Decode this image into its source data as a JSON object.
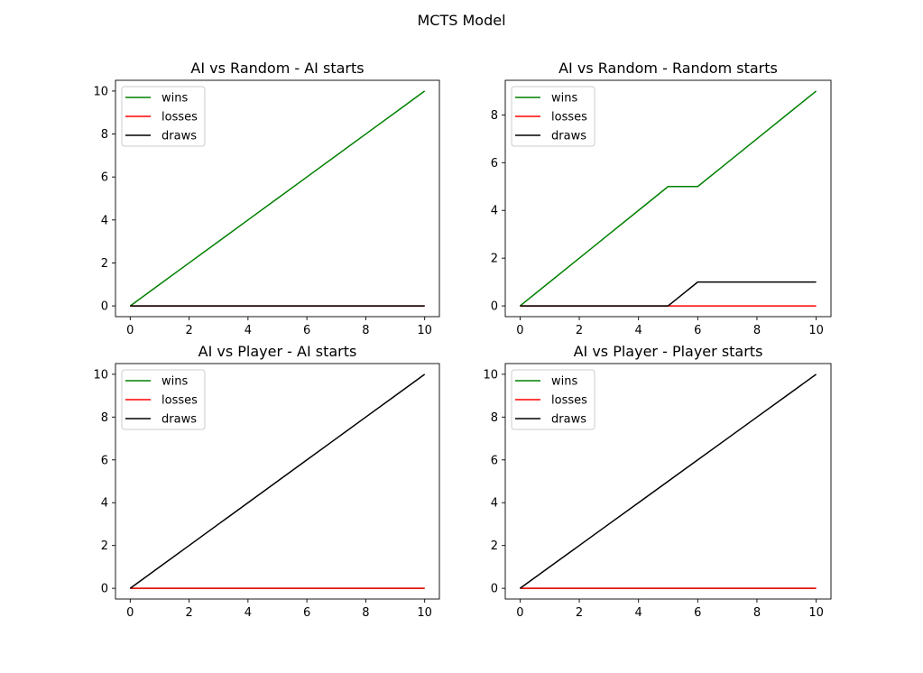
{
  "figure": {
    "suptitle": "MCTS Model"
  },
  "chart_data": [
    {
      "type": "line",
      "title": "AI vs Random - AI starts",
      "xlabel": "",
      "ylabel": "",
      "xlim": [
        -0.5,
        10.5
      ],
      "ylim": [
        -0.5,
        10.5
      ],
      "xticks": [
        0,
        2,
        4,
        6,
        8,
        10
      ],
      "yticks": [
        0,
        2,
        4,
        6,
        8,
        10
      ],
      "grid": false,
      "legend_position": "upper-left",
      "x": [
        0,
        1,
        2,
        3,
        4,
        5,
        6,
        7,
        8,
        9,
        10
      ],
      "series": [
        {
          "name": "wins",
          "color": "#008000",
          "values": [
            0,
            1,
            2,
            3,
            4,
            5,
            6,
            7,
            8,
            9,
            10
          ]
        },
        {
          "name": "losses",
          "color": "#ff0000",
          "values": [
            0,
            0,
            0,
            0,
            0,
            0,
            0,
            0,
            0,
            0,
            0
          ]
        },
        {
          "name": "draws",
          "color": "#000000",
          "values": [
            0,
            0,
            0,
            0,
            0,
            0,
            0,
            0,
            0,
            0,
            0
          ]
        }
      ]
    },
    {
      "type": "line",
      "title": "AI vs Random - Random starts",
      "xlabel": "",
      "ylabel": "",
      "xlim": [
        -0.5,
        10.5
      ],
      "ylim": [
        -0.45,
        9.45
      ],
      "xticks": [
        0,
        2,
        4,
        6,
        8,
        10
      ],
      "yticks": [
        0,
        2,
        4,
        6,
        8
      ],
      "grid": false,
      "legend_position": "upper-left",
      "x": [
        0,
        1,
        2,
        3,
        4,
        5,
        6,
        7,
        8,
        9,
        10
      ],
      "series": [
        {
          "name": "wins",
          "color": "#008000",
          "values": [
            0,
            1,
            2,
            3,
            4,
            5,
            5,
            6,
            7,
            8,
            9
          ]
        },
        {
          "name": "losses",
          "color": "#ff0000",
          "values": [
            0,
            0,
            0,
            0,
            0,
            0,
            0,
            0,
            0,
            0,
            0
          ]
        },
        {
          "name": "draws",
          "color": "#000000",
          "values": [
            0,
            0,
            0,
            0,
            0,
            0,
            1,
            1,
            1,
            1,
            1
          ]
        }
      ]
    },
    {
      "type": "line",
      "title": "AI vs Player - AI starts",
      "xlabel": "",
      "ylabel": "",
      "xlim": [
        -0.5,
        10.5
      ],
      "ylim": [
        -0.5,
        10.5
      ],
      "xticks": [
        0,
        2,
        4,
        6,
        8,
        10
      ],
      "yticks": [
        0,
        2,
        4,
        6,
        8,
        10
      ],
      "grid": false,
      "legend_position": "upper-left",
      "x": [
        0,
        1,
        2,
        3,
        4,
        5,
        6,
        7,
        8,
        9,
        10
      ],
      "series": [
        {
          "name": "wins",
          "color": "#008000",
          "values": [
            0,
            0,
            0,
            0,
            0,
            0,
            0,
            0,
            0,
            0,
            0
          ]
        },
        {
          "name": "losses",
          "color": "#ff0000",
          "values": [
            0,
            0,
            0,
            0,
            0,
            0,
            0,
            0,
            0,
            0,
            0
          ]
        },
        {
          "name": "draws",
          "color": "#000000",
          "values": [
            0,
            1,
            2,
            3,
            4,
            5,
            6,
            7,
            8,
            9,
            10
          ]
        }
      ]
    },
    {
      "type": "line",
      "title": "AI vs Player - Player starts",
      "xlabel": "",
      "ylabel": "",
      "xlim": [
        -0.5,
        10.5
      ],
      "ylim": [
        -0.5,
        10.5
      ],
      "xticks": [
        0,
        2,
        4,
        6,
        8,
        10
      ],
      "yticks": [
        0,
        2,
        4,
        6,
        8,
        10
      ],
      "grid": false,
      "legend_position": "upper-left",
      "x": [
        0,
        1,
        2,
        3,
        4,
        5,
        6,
        7,
        8,
        9,
        10
      ],
      "series": [
        {
          "name": "wins",
          "color": "#008000",
          "values": [
            0,
            0,
            0,
            0,
            0,
            0,
            0,
            0,
            0,
            0,
            0
          ]
        },
        {
          "name": "losses",
          "color": "#ff0000",
          "values": [
            0,
            0,
            0,
            0,
            0,
            0,
            0,
            0,
            0,
            0,
            0
          ]
        },
        {
          "name": "draws",
          "color": "#000000",
          "values": [
            0,
            1,
            2,
            3,
            4,
            5,
            6,
            7,
            8,
            9,
            10
          ]
        }
      ]
    }
  ]
}
